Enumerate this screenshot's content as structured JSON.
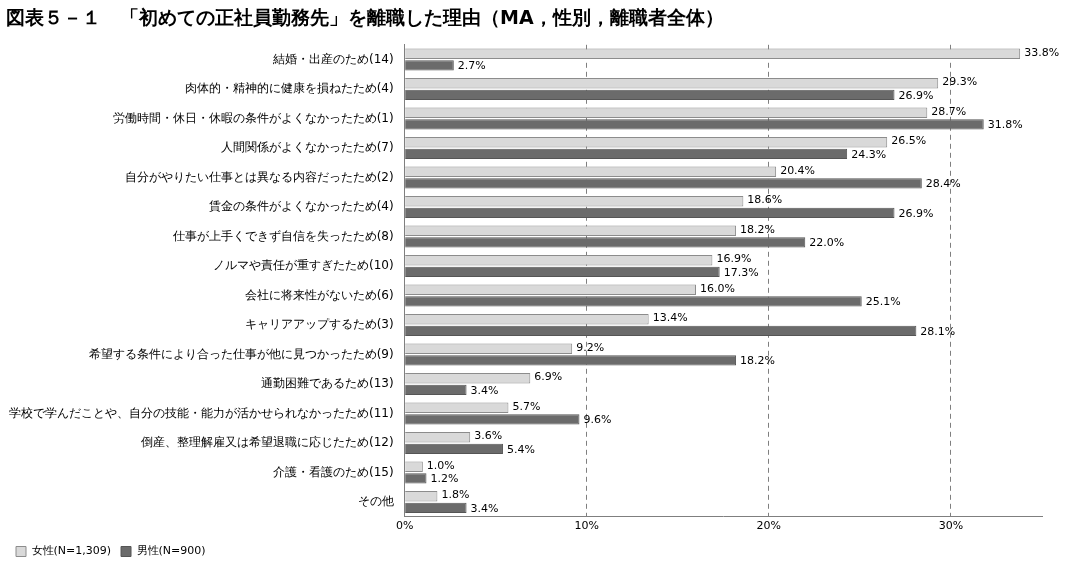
{
  "chart_data": {
    "type": "bar",
    "orientation": "horizontal",
    "title": "図表５－１　「初めての正社員勤務先」を離職した理由（MA，性別，離職者全体）",
    "categories": [
      "結婚・出産のため(14)",
      "肉体的・精神的に健康を損ねたため(4)",
      "労働時間・休日・休暇の条件がよくなかったため(1)",
      "人間関係がよくなかったため(7)",
      "自分がやりたい仕事とは異なる内容だったため(2)",
      "賃金の条件がよくなかったため(4)",
      "仕事が上手くできず自信を失ったため(8)",
      "ノルマや責任が重すぎたため(10)",
      "会社に将来性がないため(6)",
      "キャリアアップするため(3)",
      "希望する条件により合った仕事が他に見つかったため(9)",
      "通勤困難であるため(13)",
      "学校で学んだことや、自分の技能・能力が活かせられなかったため(11)",
      "倒産、整理解雇又は希望退職に応じたため(12)",
      "介護・看護のため(15)",
      "その他"
    ],
    "series": [
      {
        "name": "女性(N=1,309)",
        "color": "#d9d9d9",
        "values": [
          33.8,
          29.3,
          28.7,
          26.5,
          20.4,
          18.6,
          18.2,
          16.9,
          16.0,
          13.4,
          9.2,
          6.9,
          5.7,
          3.6,
          1.0,
          1.8
        ],
        "value_labels": [
          "33.8%",
          "29.3%",
          "28.7%",
          "26.5%",
          "20.4%",
          "18.6%",
          "18.2%",
          "16.9%",
          "16.0%",
          "13.4%",
          "9.2%",
          "6.9%",
          "5.7%",
          "3.6%",
          "1.0%",
          "1.8%"
        ]
      },
      {
        "name": "男性(N=900)",
        "color": "#6b6b6b",
        "values": [
          2.7,
          26.9,
          31.8,
          24.3,
          28.4,
          26.9,
          22.0,
          17.3,
          25.1,
          28.1,
          18.2,
          3.4,
          9.6,
          5.4,
          1.2,
          3.4
        ],
        "value_labels": [
          "2.7%",
          "26.9%",
          "31.8%",
          "24.3%",
          "28.4%",
          "26.9%",
          "22.0%",
          "17.3%",
          "25.1%",
          "28.1%",
          "18.2%",
          "3.4%",
          "9.6%",
          "5.4%",
          "1.2%",
          "3.4%"
        ]
      }
    ],
    "xlim": [
      0,
      35
    ],
    "xticks": [
      {
        "value": 0,
        "label": "0%"
      },
      {
        "value": 10,
        "label": "10%"
      },
      {
        "value": 20,
        "label": "20%"
      },
      {
        "value": 30,
        "label": "30%"
      }
    ],
    "grid": true,
    "legend": "bottom-left",
    "data_labels": true
  }
}
